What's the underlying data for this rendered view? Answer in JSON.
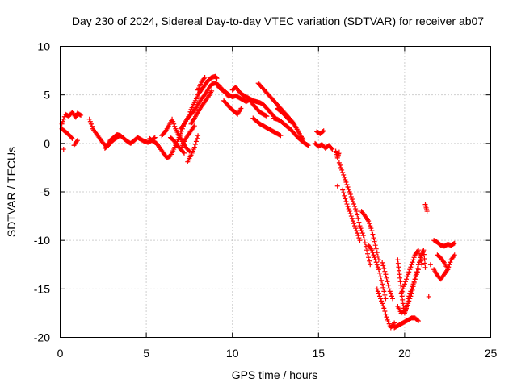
{
  "chart_data": {
    "type": "scatter",
    "title": "Day 230 of 2024, Sidereal Day-to-day VTEC variation (SDTVAR) for receiver ab07",
    "xlabel": "GPS time / hours",
    "ylabel": "SDTVAR / TECUs",
    "xlim": [
      0,
      25
    ],
    "ylim": [
      -20,
      10
    ],
    "xticks": [
      "0",
      "5",
      "10",
      "15",
      "20",
      "25"
    ],
    "yticks": [
      "-20",
      "-15",
      "-10",
      "-5",
      "0",
      "5",
      "10"
    ],
    "grid": true,
    "marker": "+",
    "color": "#ff0000",
    "series": [
      {
        "name": "SDTVAR",
        "segments": [
          {
            "x": [
              0.1,
              0.3,
              0.5,
              0.7,
              0.9,
              1.0,
              1.2
            ],
            "y": [
              2.0,
              3.0,
              2.8,
              3.2,
              2.7,
              3.1,
              2.9
            ]
          },
          {
            "x": [
              0.1,
              0.3,
              0.5,
              0.7
            ],
            "y": [
              1.5,
              1.2,
              0.9,
              0.5
            ]
          },
          {
            "x": [
              0.8,
              1.0
            ],
            "y": [
              -0.2,
              0.3
            ]
          },
          {
            "x": [
              0.2
            ],
            "y": [
              -0.6
            ]
          },
          {
            "x": [
              1.7,
              1.9,
              2.1,
              2.3,
              2.5,
              2.7,
              2.9,
              3.1,
              3.3,
              3.5,
              3.7,
              3.9,
              4.1,
              4.3,
              4.5,
              4.7,
              4.9,
              5.1,
              5.3,
              5.5
            ],
            "y": [
              2.5,
              1.5,
              1.0,
              0.5,
              0.0,
              -0.3,
              0.3,
              0.6,
              0.9,
              0.8,
              0.5,
              0.2,
              0.0,
              0.3,
              0.6,
              0.4,
              0.2,
              0.1,
              0.3,
              0.6
            ]
          },
          {
            "x": [
              2.6,
              2.8,
              3.0,
              3.2,
              3.4
            ],
            "y": [
              -0.5,
              -0.2,
              0.2,
              0.5,
              0.7
            ]
          },
          {
            "x": [
              5.2,
              5.4,
              5.6,
              5.8,
              6.0,
              6.2,
              6.4,
              6.6,
              6.8,
              7.0,
              7.2
            ],
            "y": [
              0.5,
              0.2,
              0.0,
              -0.5,
              -1.0,
              -1.5,
              -1.3,
              -0.6,
              0.2,
              1.0,
              2.0
            ]
          },
          {
            "x": [
              5.9,
              6.1,
              6.3,
              6.5,
              6.7,
              6.9,
              7.1,
              7.3,
              7.5
            ],
            "y": [
              0.8,
              1.2,
              1.8,
              2.5,
              1.5,
              0.8,
              0.2,
              -0.4,
              -0.8
            ]
          },
          {
            "x": [
              6.4,
              6.6,
              6.8,
              7.0,
              7.2
            ],
            "y": [
              0.6,
              0.3,
              -0.2,
              -0.6,
              -1.0
            ]
          },
          {
            "x": [
              7.4,
              7.6,
              7.8,
              8.0
            ],
            "y": [
              -1.9,
              -1.2,
              -0.4,
              0.8
            ]
          },
          {
            "x": [
              7.4,
              7.6,
              7.8,
              8.0,
              8.2,
              8.4,
              8.6,
              8.8,
              9.0,
              9.1
            ],
            "y": [
              2.5,
              3.5,
              4.2,
              5.0,
              5.5,
              6.0,
              6.5,
              6.8,
              6.9,
              6.7
            ]
          },
          {
            "x": [
              7.6,
              7.8,
              8.0,
              8.2,
              8.4,
              8.6,
              8.8
            ],
            "y": [
              2.0,
              2.6,
              3.2,
              3.8,
              4.3,
              4.8,
              5.4
            ]
          },
          {
            "x": [
              7.0,
              7.2,
              7.4,
              7.6,
              7.8,
              8.0,
              8.2,
              8.4,
              8.6,
              8.8,
              9.0,
              9.2,
              9.4,
              9.6,
              9.8
            ],
            "y": [
              1.5,
              2.0,
              2.6,
              3.0,
              3.4,
              4.0,
              4.6,
              5.0,
              5.6,
              6.1,
              6.2,
              6.0,
              5.6,
              5.2,
              4.8
            ]
          },
          {
            "x": [
              7.0,
              7.2,
              7.4,
              7.6,
              7.8
            ],
            "y": [
              -0.6,
              0.2,
              0.8,
              1.3,
              1.8
            ]
          },
          {
            "x": [
              8.0,
              8.2,
              8.4
            ],
            "y": [
              5.5,
              6.3,
              6.8
            ]
          },
          {
            "x": [
              9.2,
              9.4,
              9.6,
              9.8,
              10.0,
              10.2,
              10.4,
              10.6,
              10.8,
              11.0,
              11.2,
              11.4,
              11.6,
              11.8,
              12.0
            ],
            "y": [
              5.8,
              5.5,
              5.3,
              5.0,
              4.8,
              4.9,
              4.7,
              4.5,
              4.3,
              4.5,
              4.0,
              3.6,
              3.2,
              3.0,
              2.8
            ]
          },
          {
            "x": [
              9.5,
              9.7,
              9.9,
              10.1,
              10.3,
              10.5
            ],
            "y": [
              4.4,
              4.0,
              3.6,
              3.3,
              3.0,
              3.6
            ]
          },
          {
            "x": [
              10.0,
              10.2,
              10.4,
              10.6,
              10.8,
              11.0,
              11.2,
              11.4,
              11.6,
              11.8,
              12.0,
              12.2,
              12.4
            ],
            "y": [
              5.5,
              5.8,
              5.3,
              5.0,
              4.8,
              4.6,
              4.4,
              4.3,
              4.2,
              4.0,
              3.6,
              3.2,
              2.8
            ]
          },
          {
            "x": [
              11.2,
              11.4,
              11.6,
              11.8,
              12.0,
              12.2,
              12.4,
              12.6,
              12.8
            ],
            "y": [
              2.6,
              2.3,
              2.0,
              1.8,
              1.6,
              1.4,
              1.2,
              1.0,
              0.8
            ]
          },
          {
            "x": [
              11.5,
              11.7,
              11.9,
              12.1,
              12.3,
              12.5,
              12.7,
              12.9,
              13.1,
              13.3,
              13.5,
              13.7,
              13.9,
              14.1
            ],
            "y": [
              6.2,
              5.8,
              5.4,
              5.0,
              4.6,
              4.2,
              3.8,
              3.4,
              3.0,
              2.6,
              2.2,
              1.6,
              1.0,
              0.4
            ]
          },
          {
            "x": [
              12.4,
              12.6,
              12.8,
              13.0,
              13.2,
              13.4,
              13.6,
              13.8,
              14.0,
              14.2,
              14.4
            ],
            "y": [
              2.6,
              2.5,
              2.3,
              2.0,
              1.7,
              1.4,
              1.0,
              0.6,
              0.3,
              0.0,
              -0.2
            ]
          },
          {
            "x": [
              12.6,
              12.8,
              13.0,
              13.2,
              13.4
            ],
            "y": [
              3.6,
              3.3,
              3.0,
              2.6,
              2.2
            ]
          },
          {
            "x": [
              14.9,
              15.1,
              15.3
            ],
            "y": [
              1.2,
              1.0,
              1.3
            ]
          },
          {
            "x": [
              14.8,
              15.0,
              15.2,
              15.4,
              15.6,
              15.8
            ],
            "y": [
              0.0,
              -0.3,
              -0.1,
              -0.5,
              -0.2,
              -0.6
            ]
          },
          {
            "x": [
              16.0,
              16.1,
              16.2
            ],
            "y": [
              -0.8,
              -1.5,
              -0.9
            ]
          },
          {
            "x": [
              16.1
            ],
            "y": [
              -4.4
            ]
          },
          {
            "x": [
              16.2,
              16.4,
              16.6,
              16.8,
              17.0,
              17.2,
              17.4,
              17.6,
              17.8,
              18.0
            ],
            "y": [
              -2.0,
              -3.0,
              -4.0,
              -5.0,
              -6.0,
              -7.0,
              -8.5,
              -9.5,
              -11.0,
              -12.5
            ]
          },
          {
            "x": [
              16.4,
              16.6,
              16.8,
              17.0,
              17.2,
              17.4
            ],
            "y": [
              -4.8,
              -6.0,
              -7.0,
              -8.0,
              -9.0,
              -10.0
            ]
          },
          {
            "x": [
              17.5,
              17.7,
              17.9,
              18.1,
              18.3,
              18.5
            ],
            "y": [
              -7.0,
              -7.5,
              -8.0,
              -9.0,
              -10.5,
              -12.0
            ]
          },
          {
            "x": [
              17.9,
              18.1,
              18.3,
              18.5,
              18.7,
              18.9
            ],
            "y": [
              -10.5,
              -11.0,
              -12.0,
              -13.0,
              -14.5,
              -16.0
            ]
          },
          {
            "x": [
              18.4,
              18.6,
              18.8,
              19.0,
              19.2,
              19.4
            ],
            "y": [
              -15.0,
              -16.0,
              -17.0,
              -18.2,
              -19.0,
              -18.5
            ]
          },
          {
            "x": [
              18.7,
              18.9,
              19.1,
              19.3
            ],
            "y": [
              -12.3,
              -13.5,
              -15.0,
              -16.0
            ]
          },
          {
            "x": [
              19.4,
              19.6,
              19.8,
              20.0,
              20.2,
              20.4,
              20.6,
              20.8
            ],
            "y": [
              -19.0,
              -18.8,
              -18.6,
              -18.4,
              -18.2,
              -18.0,
              -18.0,
              -18.3
            ]
          },
          {
            "x": [
              19.6,
              19.8,
              20.0,
              20.2,
              20.4,
              20.6,
              20.8,
              21.0
            ],
            "y": [
              -16.8,
              -17.5,
              -17.2,
              -16.5,
              -15.5,
              -14.0,
              -12.5,
              -11.5
            ]
          },
          {
            "x": [
              19.6,
              19.7,
              19.8,
              19.9,
              20.0,
              20.1
            ],
            "y": [
              -12.0,
              -13.5,
              -15.0,
              -16.5,
              -17.5,
              -17.0
            ]
          },
          {
            "x": [
              19.8,
              20.0,
              20.2,
              20.4,
              20.6,
              20.8,
              21.0
            ],
            "y": [
              -15.5,
              -14.5,
              -13.5,
              -12.5,
              -11.5,
              -11.0,
              -12.5
            ]
          },
          {
            "x": [
              20.2,
              20.4,
              20.6,
              20.8
            ],
            "y": [
              -16.0,
              -15.0,
              -14.0,
              -13.0
            ]
          },
          {
            "x": [
              21.0,
              21.1,
              21.2
            ],
            "y": [
              -11.5,
              -11.0,
              -12.8
            ]
          },
          {
            "x": [
              21.2,
              21.3
            ],
            "y": [
              -6.3,
              -7.0
            ]
          },
          {
            "x": [
              21.4
            ],
            "y": [
              -15.8
            ]
          },
          {
            "x": [
              21.5
            ],
            "y": [
              -12.5
            ]
          },
          {
            "x": [
              21.7,
              21.9,
              22.1,
              22.3,
              22.5,
              22.7,
              22.9
            ],
            "y": [
              -10.0,
              -10.2,
              -10.5,
              -10.6,
              -10.4,
              -10.5,
              -10.3
            ]
          },
          {
            "x": [
              21.7,
              21.9,
              22.1,
              22.3,
              22.5,
              22.7,
              22.9
            ],
            "y": [
              -13.0,
              -13.6,
              -14.0,
              -13.5,
              -13.0,
              -12.0,
              -11.5
            ]
          },
          {
            "x": [
              21.9,
              22.1,
              22.3,
              22.5
            ],
            "y": [
              -11.5,
              -11.8,
              -12.3,
              -13.0
            ]
          }
        ]
      }
    ]
  }
}
